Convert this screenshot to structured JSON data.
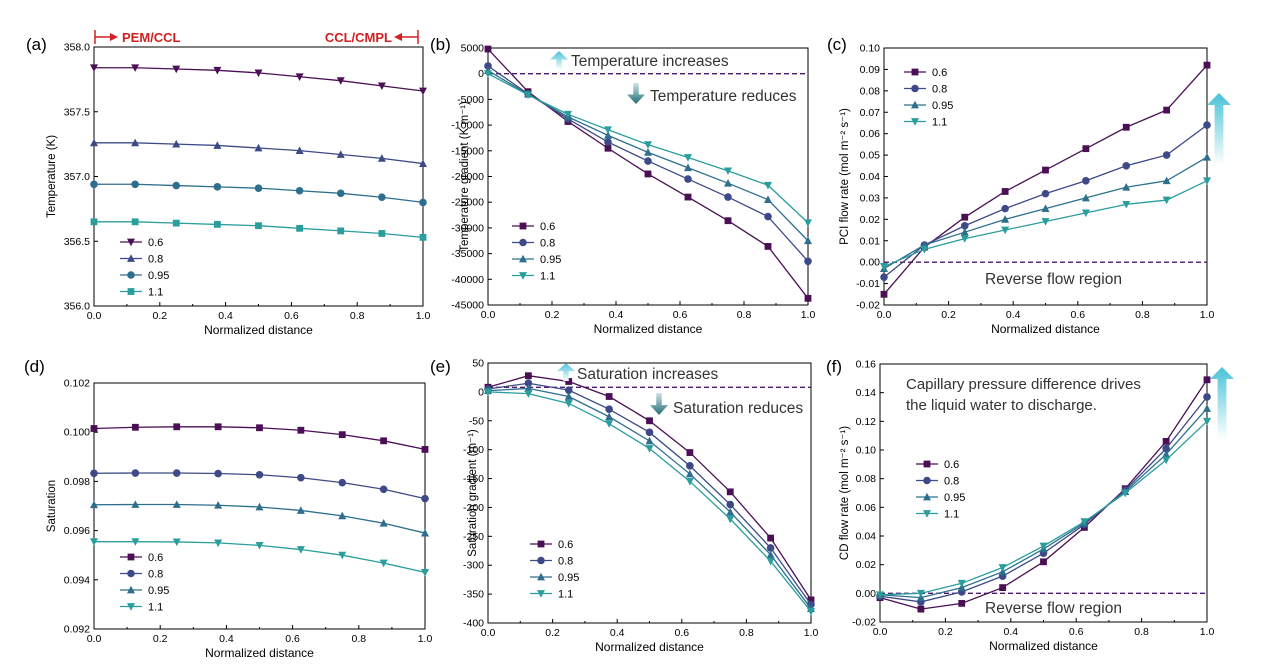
{
  "colors": {
    "s06": "#4b0f55",
    "s08": "#3d4a87",
    "s095": "#2e6f8e",
    "s11": "#2a9d9d",
    "ref_line": "#4b1a6e",
    "red": "#d22020",
    "arrow_light": "#5ccfe0",
    "arrow_dark": "#1f6e75",
    "text": "#000000",
    "annotation": "#333333"
  },
  "chart_data": [
    {
      "type": "line",
      "panel": "(a)",
      "xlabel": "Normalized distance",
      "ylabel": "Temperature (K)",
      "xlim": [
        0,
        1
      ],
      "ylim": [
        356.0,
        358.0
      ],
      "xticks": [
        "0.0",
        "0.2",
        "0.4",
        "0.6",
        "0.8",
        "1.0"
      ],
      "yticks": [
        "356.0",
        "356.5",
        "357.0",
        "357.5",
        "358.0"
      ],
      "x": [
        0,
        0.125,
        0.25,
        0.375,
        0.5,
        0.625,
        0.75,
        0.875,
        1.0
      ],
      "series": [
        {
          "name": "0.6",
          "marker": "tri-down",
          "values": [
            357.84,
            357.84,
            357.83,
            357.82,
            357.8,
            357.77,
            357.74,
            357.7,
            357.66
          ]
        },
        {
          "name": "0.8",
          "marker": "tri-up",
          "values": [
            357.26,
            357.26,
            357.25,
            357.24,
            357.22,
            357.2,
            357.17,
            357.14,
            357.1
          ]
        },
        {
          "name": "0.95",
          "marker": "circle",
          "values": [
            356.94,
            356.94,
            356.93,
            356.92,
            356.91,
            356.89,
            356.87,
            356.84,
            356.8
          ]
        },
        {
          "name": "1.1",
          "marker": "square",
          "values": [
            356.65,
            356.65,
            356.64,
            356.63,
            356.62,
            356.6,
            356.58,
            356.56,
            356.53
          ]
        }
      ],
      "legend_position": "lower-left",
      "annotations": {
        "left_label": "PEM/CCL",
        "right_label": "CCL/CMPL"
      }
    },
    {
      "type": "line",
      "panel": "(b)",
      "xlabel": "Normalized distance",
      "ylabel": "Temperature gradient (K m⁻¹)",
      "xlim": [
        0,
        1
      ],
      "ylim": [
        -45000,
        5000
      ],
      "xticks": [
        "0.0",
        "0.2",
        "0.4",
        "0.6",
        "0.8",
        "1.0"
      ],
      "yticks": [
        "5000",
        "0",
        "-5000",
        "-10000",
        "-15000",
        "-20000",
        "-25000",
        "-30000",
        "-35000",
        "-40000",
        "-45000"
      ],
      "x": [
        0,
        0.125,
        0.25,
        0.375,
        0.5,
        0.625,
        0.75,
        0.875,
        1.0
      ],
      "series": [
        {
          "name": "0.6",
          "marker": "square",
          "values": [
            4800,
            -3500,
            -9300,
            -14500,
            -19500,
            -24000,
            -28600,
            -33600,
            -43700
          ]
        },
        {
          "name": "0.8",
          "marker": "circle",
          "values": [
            1500,
            -3900,
            -8800,
            -13300,
            -17000,
            -20500,
            -24000,
            -27800,
            -36500
          ]
        },
        {
          "name": "0.95",
          "marker": "tri-up",
          "values": [
            600,
            -4000,
            -8400,
            -12000,
            -15300,
            -18300,
            -21300,
            -24500,
            -32500
          ]
        },
        {
          "name": "1.1",
          "marker": "tri-down",
          "values": [
            0,
            -4100,
            -7900,
            -10900,
            -13800,
            -16300,
            -18900,
            -21700,
            -29000
          ]
        }
      ],
      "legend_position": "lower-left",
      "reference_line": 0,
      "annotations": {
        "up_text": "Temperature increases",
        "down_text": "Temperature reduces"
      }
    },
    {
      "type": "line",
      "panel": "(c)",
      "xlabel": "Normalized distance",
      "ylabel": "PCI flow rate (mol m⁻² s⁻¹)",
      "xlim": [
        0,
        1
      ],
      "ylim": [
        -0.02,
        0.1
      ],
      "xticks": [
        "0.0",
        "0.2",
        "0.4",
        "0.6",
        "0.8",
        "1.0"
      ],
      "yticks": [
        "-0.02",
        "-0.01",
        "0.00",
        "0.01",
        "0.02",
        "0.03",
        "0.04",
        "0.05",
        "0.06",
        "0.07",
        "0.08",
        "0.09",
        "0.10"
      ],
      "x": [
        0,
        0.125,
        0.25,
        0.375,
        0.5,
        0.625,
        0.75,
        0.875,
        1.0
      ],
      "series": [
        {
          "name": "0.6",
          "marker": "square",
          "values": [
            -0.015,
            0.007,
            0.021,
            0.033,
            0.043,
            0.053,
            0.063,
            0.071,
            0.092
          ]
        },
        {
          "name": "0.8",
          "marker": "circle",
          "values": [
            -0.007,
            0.008,
            0.017,
            0.025,
            0.032,
            0.038,
            0.045,
            0.05,
            0.064
          ]
        },
        {
          "name": "0.95",
          "marker": "tri-up",
          "values": [
            -0.003,
            0.008,
            0.014,
            0.02,
            0.025,
            0.03,
            0.035,
            0.038,
            0.049
          ]
        },
        {
          "name": "1.1",
          "marker": "tri-down",
          "values": [
            -0.002,
            0.006,
            0.011,
            0.015,
            0.019,
            0.023,
            0.027,
            0.029,
            0.038
          ]
        }
      ],
      "legend_position": "top-left",
      "reference_line": 0,
      "annotations": {
        "region_text": "Reverse flow region"
      }
    },
    {
      "type": "line",
      "panel": "(d)",
      "xlabel": "Normalized distance",
      "ylabel": "Saturation",
      "xlim": [
        0,
        1
      ],
      "ylim": [
        0.092,
        0.102
      ],
      "xticks": [
        "0.0",
        "0.2",
        "0.4",
        "0.6",
        "0.8",
        "1.0"
      ],
      "yticks": [
        "0.092",
        "0.094",
        "0.096",
        "0.098",
        "0.100",
        "0.102"
      ],
      "x": [
        0,
        0.125,
        0.25,
        0.375,
        0.5,
        0.625,
        0.75,
        0.875,
        1.0
      ],
      "series": [
        {
          "name": "0.6",
          "marker": "square",
          "values": [
            0.10015,
            0.1002,
            0.10022,
            0.10022,
            0.10018,
            0.10008,
            0.0999,
            0.09965,
            0.0993
          ]
        },
        {
          "name": "0.8",
          "marker": "circle",
          "values": [
            0.09833,
            0.09834,
            0.09834,
            0.09832,
            0.09827,
            0.09815,
            0.09795,
            0.09768,
            0.0973
          ]
        },
        {
          "name": "0.95",
          "marker": "tri-up",
          "values": [
            0.09705,
            0.09706,
            0.09706,
            0.09703,
            0.09696,
            0.09682,
            0.0966,
            0.0963,
            0.0959
          ]
        },
        {
          "name": "1.1",
          "marker": "tri-down",
          "values": [
            0.09555,
            0.09555,
            0.09554,
            0.0955,
            0.0954,
            0.09523,
            0.095,
            0.09468,
            0.0943
          ]
        }
      ],
      "legend_position": "lower-left"
    },
    {
      "type": "line",
      "panel": "(e)",
      "xlabel": "Normalized distance",
      "ylabel": "Saturation gradient (m⁻¹)",
      "xlim": [
        0,
        1
      ],
      "ylim": [
        -400,
        50
      ],
      "xticks": [
        "0.0",
        "0.2",
        "0.4",
        "0.6",
        "0.8",
        "1.0"
      ],
      "yticks": [
        "50",
        "0",
        "-50",
        "-100",
        "-150",
        "-200",
        "-250",
        "-300",
        "-350",
        "-400"
      ],
      "x": [
        0,
        0.125,
        0.25,
        0.375,
        0.5,
        0.625,
        0.75,
        0.875,
        1.0
      ],
      "series": [
        {
          "name": "0.6",
          "marker": "square",
          "values": [
            8,
            28,
            18,
            -8,
            -50,
            -105,
            -173,
            -253,
            -360
          ]
        },
        {
          "name": "0.8",
          "marker": "circle",
          "values": [
            5,
            15,
            3,
            -30,
            -70,
            -128,
            -195,
            -270,
            -368
          ]
        },
        {
          "name": "0.95",
          "marker": "tri-up",
          "values": [
            2,
            6,
            -8,
            -43,
            -85,
            -142,
            -208,
            -282,
            -375
          ]
        },
        {
          "name": "1.1",
          "marker": "tri-down",
          "values": [
            0,
            -3,
            -20,
            -55,
            -98,
            -155,
            -220,
            -293,
            -380
          ]
        }
      ],
      "legend_position": "lower-left",
      "reference_line": 8,
      "annotations": {
        "up_text": "Saturation increases",
        "down_text": "Saturation reduces"
      }
    },
    {
      "type": "line",
      "panel": "(f)",
      "xlabel": "Normalized distance",
      "ylabel": "CD flow rate (mol m⁻² s⁻¹)",
      "xlim": [
        0,
        1
      ],
      "ylim": [
        -0.02,
        0.16
      ],
      "xticks": [
        "0.0",
        "0.2",
        "0.4",
        "0.6",
        "0.8",
        "1.0"
      ],
      "yticks": [
        "-0.02",
        "0.00",
        "0.02",
        "0.04",
        "0.06",
        "0.08",
        "0.10",
        "0.12",
        "0.14",
        "0.16"
      ],
      "x": [
        0,
        0.125,
        0.25,
        0.375,
        0.5,
        0.625,
        0.75,
        0.875,
        1.0
      ],
      "series": [
        {
          "name": "0.6",
          "marker": "square",
          "values": [
            -0.003,
            -0.011,
            -0.007,
            0.004,
            0.022,
            0.046,
            0.073,
            0.106,
            0.149
          ]
        },
        {
          "name": "0.8",
          "marker": "circle",
          "values": [
            -0.002,
            -0.006,
            0.001,
            0.012,
            0.028,
            0.048,
            0.072,
            0.101,
            0.137
          ]
        },
        {
          "name": "0.95",
          "marker": "tri-up",
          "values": [
            -0.001,
            -0.003,
            0.004,
            0.015,
            0.031,
            0.049,
            0.071,
            0.097,
            0.129
          ]
        },
        {
          "name": "1.1",
          "marker": "tri-down",
          "values": [
            -0.001,
            0.0,
            0.007,
            0.018,
            0.033,
            0.05,
            0.07,
            0.093,
            0.12
          ]
        }
      ],
      "legend_position": "middle-left",
      "reference_line": 0,
      "annotations": {
        "region_text": "Reverse flow region",
        "note_line1": "Capillary pressure difference drives",
        "note_line2": "the liquid water to discharge."
      }
    }
  ]
}
